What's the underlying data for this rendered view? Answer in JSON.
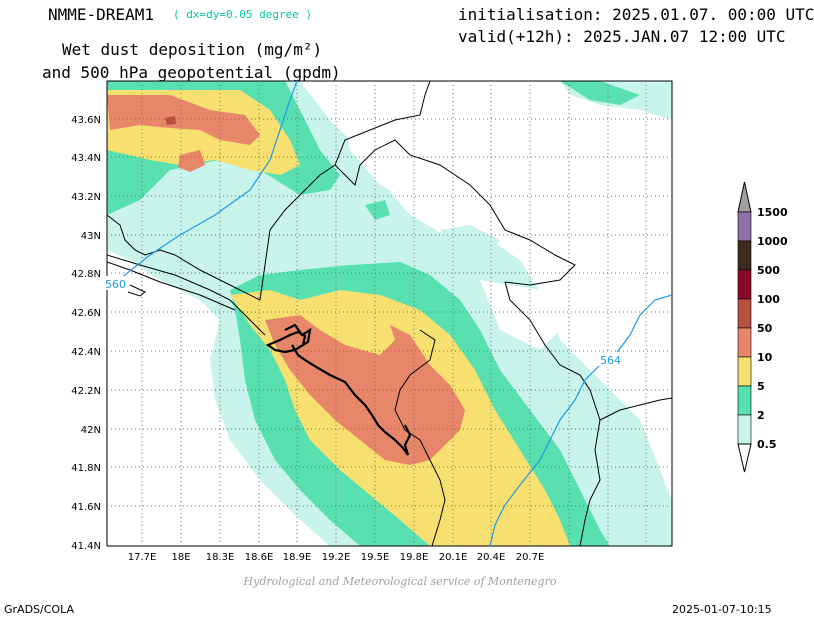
{
  "header": {
    "model": "NMME-DREAM1",
    "resolution": "( dx=dy=0.05 degree )",
    "initialisation": "initialisation: 2025.01.07. 00:00 UTC",
    "valid": "valid(+12h): 2025.JAN.07 12:00 UTC",
    "variable_line1": "Wet dust deposition (mg/m²)",
    "variable_line2": "and 500 hPa geopotential (gpdm)"
  },
  "map": {
    "lon_ticks": [
      "17.7E",
      "18E",
      "18.3E",
      "18.6E",
      "18.9E",
      "19.2E",
      "19.5E",
      "19.8E",
      "20.1E",
      "20.4E",
      "20.7E"
    ],
    "lat_ticks": [
      "43.6N",
      "43.4N",
      "43.2N",
      "43N",
      "42.8N",
      "42.6N",
      "42.4N",
      "42.2N",
      "42N",
      "41.8N",
      "41.6N",
      "41.4N"
    ],
    "contour_labels": [
      "560",
      "564"
    ],
    "contour_color": "#1e9be6"
  },
  "legend": {
    "levels": [
      "1500",
      "1000",
      "500",
      "100",
      "50",
      "10",
      "5",
      "2",
      "0.5"
    ],
    "colors": [
      "#a0a0a0",
      "#9070a8",
      "#3c2a1e",
      "#8a0a2a",
      "#b85040",
      "#e8866a",
      "#f8e070",
      "#58e0b0",
      "#c8f4ec",
      "#ffffff"
    ]
  },
  "credit": "Hydrological and Meteorological service of Montenegro",
  "footer": {
    "left": "GrADS/COLA",
    "right": "2025-01-07-10:15"
  }
}
